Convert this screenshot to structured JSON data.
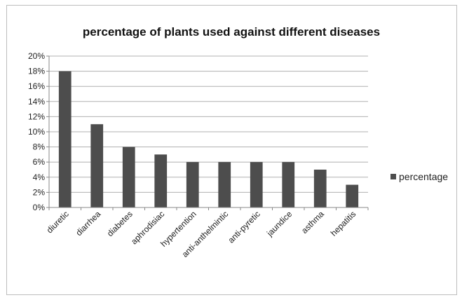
{
  "chart_data": {
    "type": "bar",
    "title": "percentage of plants used against different diseases",
    "categories": [
      "diuretic",
      "diarrhea",
      "diabetes",
      "aphrodisiac",
      "hypertention",
      "anti-anthelmintic",
      "anti-pyretic",
      "jaundice",
      "asthma",
      "hepatitis"
    ],
    "series": [
      {
        "name": "percentage",
        "values": [
          18,
          11,
          8,
          7,
          6,
          6,
          6,
          6,
          5,
          3
        ]
      }
    ],
    "ylim": [
      0,
      20
    ],
    "yticks": [
      "0%",
      "2%",
      "4%",
      "6%",
      "8%",
      "10%",
      "12%",
      "14%",
      "16%",
      "18%",
      "20%"
    ],
    "xlabel": "",
    "ylabel": "",
    "grid": true,
    "legend_position": "right",
    "bar_color": "#4d4d4d",
    "grid_color": "#b0b0b0"
  }
}
